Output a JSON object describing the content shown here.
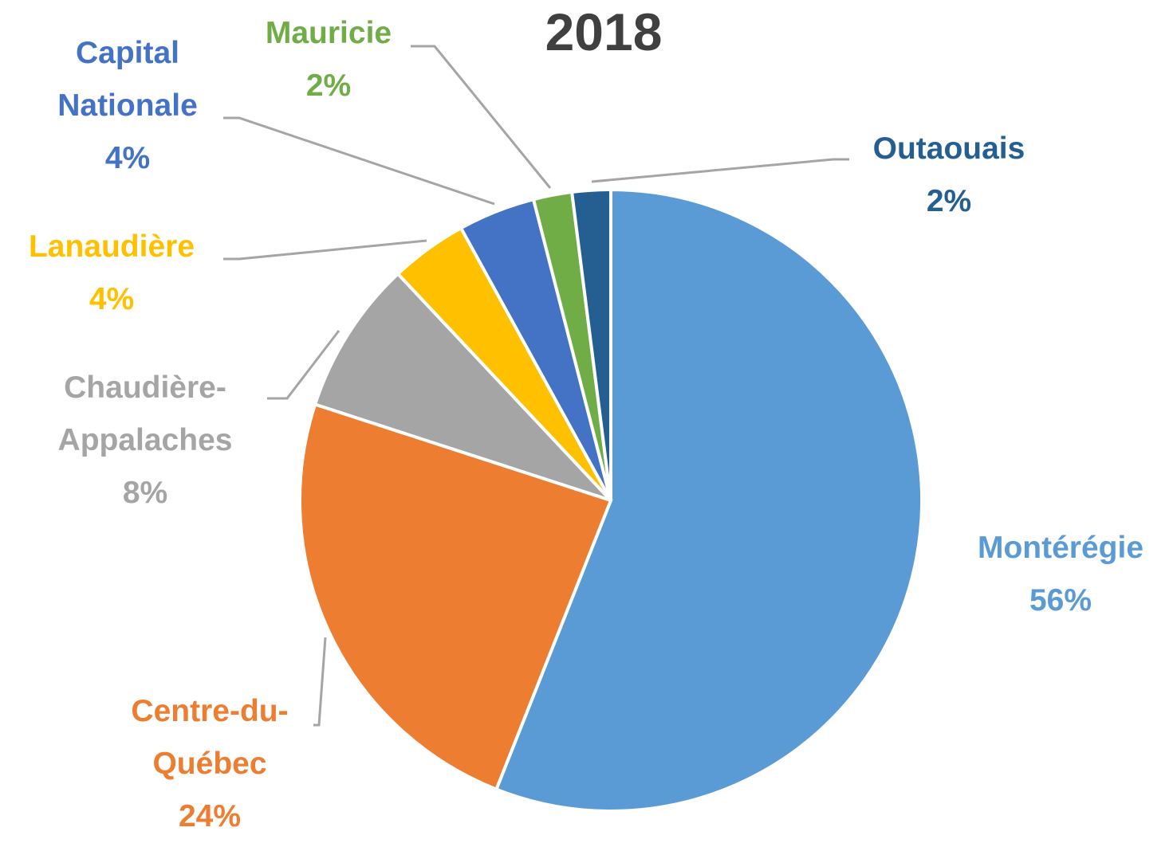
{
  "chart_data": {
    "type": "pie",
    "title": "2018",
    "categories": [
      "Montérégie",
      "Centre-du-Québec",
      "Chaudière-Appalaches",
      "Lanaudière",
      "Capital Nationale",
      "Mauricie",
      "Outaouais"
    ],
    "values": [
      56,
      24,
      8,
      4,
      4,
      2,
      2
    ],
    "value_labels": [
      "56%",
      "24%",
      "8%",
      "4%",
      "4%",
      "2%",
      "2%"
    ],
    "colors": [
      "#5b9bd5",
      "#ed7d31",
      "#a5a5a5",
      "#ffc000",
      "#4472c4",
      "#70ad47",
      "#255e91"
    ]
  }
}
